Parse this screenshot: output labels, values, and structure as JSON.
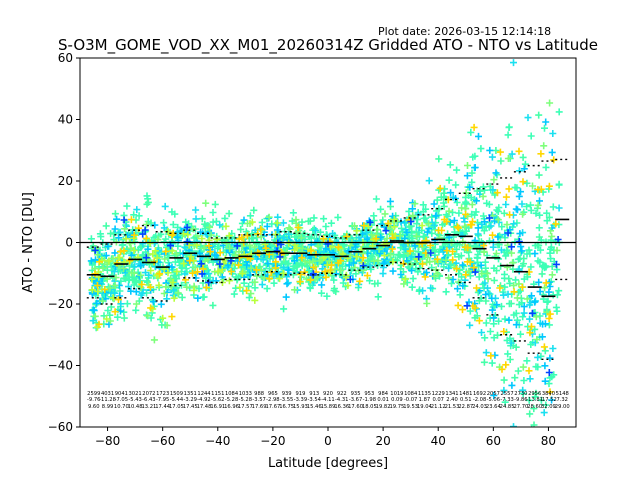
{
  "chart_data": {
    "type": "scatter",
    "plot_date": "Plot date: 2026-03-15 12:14:18",
    "title": "S-O3M_GOME_VOD_XX_M01_20260314Z Gridded ATO - NTO vs Latitude",
    "xlabel": "Latitude [degrees]",
    "ylabel": "ATO - NTO [DU]",
    "xlim": [
      -90,
      90
    ],
    "ylim": [
      -60,
      60
    ],
    "xticks": [
      -80,
      -60,
      -40,
      -20,
      0,
      20,
      40,
      60,
      80
    ],
    "yticks": [
      -60,
      -40,
      -20,
      0,
      20,
      40,
      60
    ],
    "xtick_labels": [
      "−80",
      "−60",
      "−40",
      "−20",
      "0",
      "20",
      "40",
      "60",
      "80"
    ],
    "ytick_labels": [
      "−60",
      "−40",
      "−20",
      "0",
      "20",
      "40",
      "60"
    ],
    "zero_line": 0,
    "marker": "+",
    "point_colors": [
      "#3dffb6",
      "#45ffa9",
      "#1ae0f0",
      "#00c8ff",
      "#7dff7a",
      "#b8ff3c",
      "#ffd700",
      "#0044ff"
    ],
    "bin_lat": [
      -85,
      -80,
      -75,
      -70,
      -65,
      -60,
      -55,
      -50,
      -45,
      -40,
      -35,
      -30,
      -25,
      -20,
      -15,
      -10,
      -5,
      0,
      5,
      10,
      15,
      20,
      25,
      30,
      35,
      40,
      45,
      50,
      55,
      60,
      65,
      70,
      75,
      80,
      85
    ],
    "bin_mean": [
      -10.5,
      -11.0,
      -7.0,
      -5.5,
      -6.5,
      -8.0,
      -5.0,
      -3.5,
      -4.5,
      -5.5,
      -5.0,
      -4.5,
      -3.5,
      -3.0,
      -3.5,
      -3.5,
      -4.0,
      -4.0,
      -4.5,
      -3.0,
      -2.0,
      -1.0,
      0.5,
      0.0,
      0.0,
      1.0,
      2.5,
      2.0,
      -2.0,
      -5.0,
      -7.5,
      -9.5,
      -14.5,
      -17.5,
      7.5
    ],
    "bin_upper": [
      -1.5,
      -0.5,
      2.5,
      4.0,
      5.5,
      3.5,
      3.0,
      4.0,
      3.0,
      1.5,
      1.5,
      2.5,
      2.5,
      2.5,
      3.5,
      3.0,
      2.5,
      2.0,
      1.5,
      2.5,
      4.0,
      5.5,
      7.0,
      8.0,
      9.0,
      11.0,
      14.0,
      16.0,
      17.5,
      19.0,
      21.0,
      23.0,
      25.0,
      26.5,
      27.0
    ],
    "bin_lower": [
      -18.0,
      -20.0,
      -18.0,
      -15.0,
      -18.0,
      -19.0,
      -14.0,
      -11.5,
      -12.5,
      -13.0,
      -12.0,
      -12.0,
      -10.5,
      -9.5,
      -10.5,
      -10.0,
      -10.5,
      -10.0,
      -10.5,
      -9.0,
      -8.0,
      -7.5,
      -6.5,
      -7.0,
      -8.5,
      -9.0,
      -10.5,
      -13.0,
      -18.0,
      -23.5,
      -30.0,
      -32.0,
      -36.0,
      -38.0,
      -12.0
    ],
    "bin_stats_row1": [
      "2599",
      "4031",
      "9041",
      "3021",
      "2072",
      "1723",
      "1509",
      "1351",
      "1244",
      "1151",
      "1084",
      "1033",
      "988",
      "965",
      "939",
      "919",
      "913",
      "920",
      "922",
      "935",
      "953",
      "984",
      "1019",
      "1084",
      "1135",
      "1229",
      "1341",
      "1481",
      "1692",
      "2057",
      "2557",
      "2730",
      "2956",
      "3840",
      "5148"
    ],
    "bin_stats_row2": [
      "-9.76",
      "-11.28",
      "-7.05",
      "-5.43",
      "-6.43",
      "-7.95",
      "-5.44",
      "-3.29",
      "-4.92",
      "-5.62",
      "-5.28",
      "-5.28",
      "-3.57",
      "-2.98",
      "-3.55",
      "-3.39",
      "-3.54",
      "-4.11",
      "-4.31",
      "-3.67",
      "-1.98",
      "0.01",
      "0.09",
      "-0.07",
      "1.87",
      "0.07",
      "2.40",
      "0.51",
      "-2.08",
      "-5.06",
      "-7.33",
      "-9.86",
      "-13.81",
      "-17.52",
      "7.32"
    ],
    "bin_stats_row3": [
      "9.60",
      "8.99",
      "10.70",
      "10.48",
      "13.21",
      "17.44",
      "17.05",
      "17.45",
      "17.48",
      "16.91",
      "16.96",
      "17.57",
      "17.69",
      "17.67",
      "16.75",
      "15.93",
      "15.46",
      "15.89",
      "16.36",
      "17.60",
      "18.05",
      "19.82",
      "19.75",
      "19.53",
      "19.04",
      "21.12",
      "21.53",
      "22.87",
      "24.03",
      "23.64",
      "24.85",
      "27.70",
      "28.60",
      "32.09",
      "29.00"
    ]
  }
}
